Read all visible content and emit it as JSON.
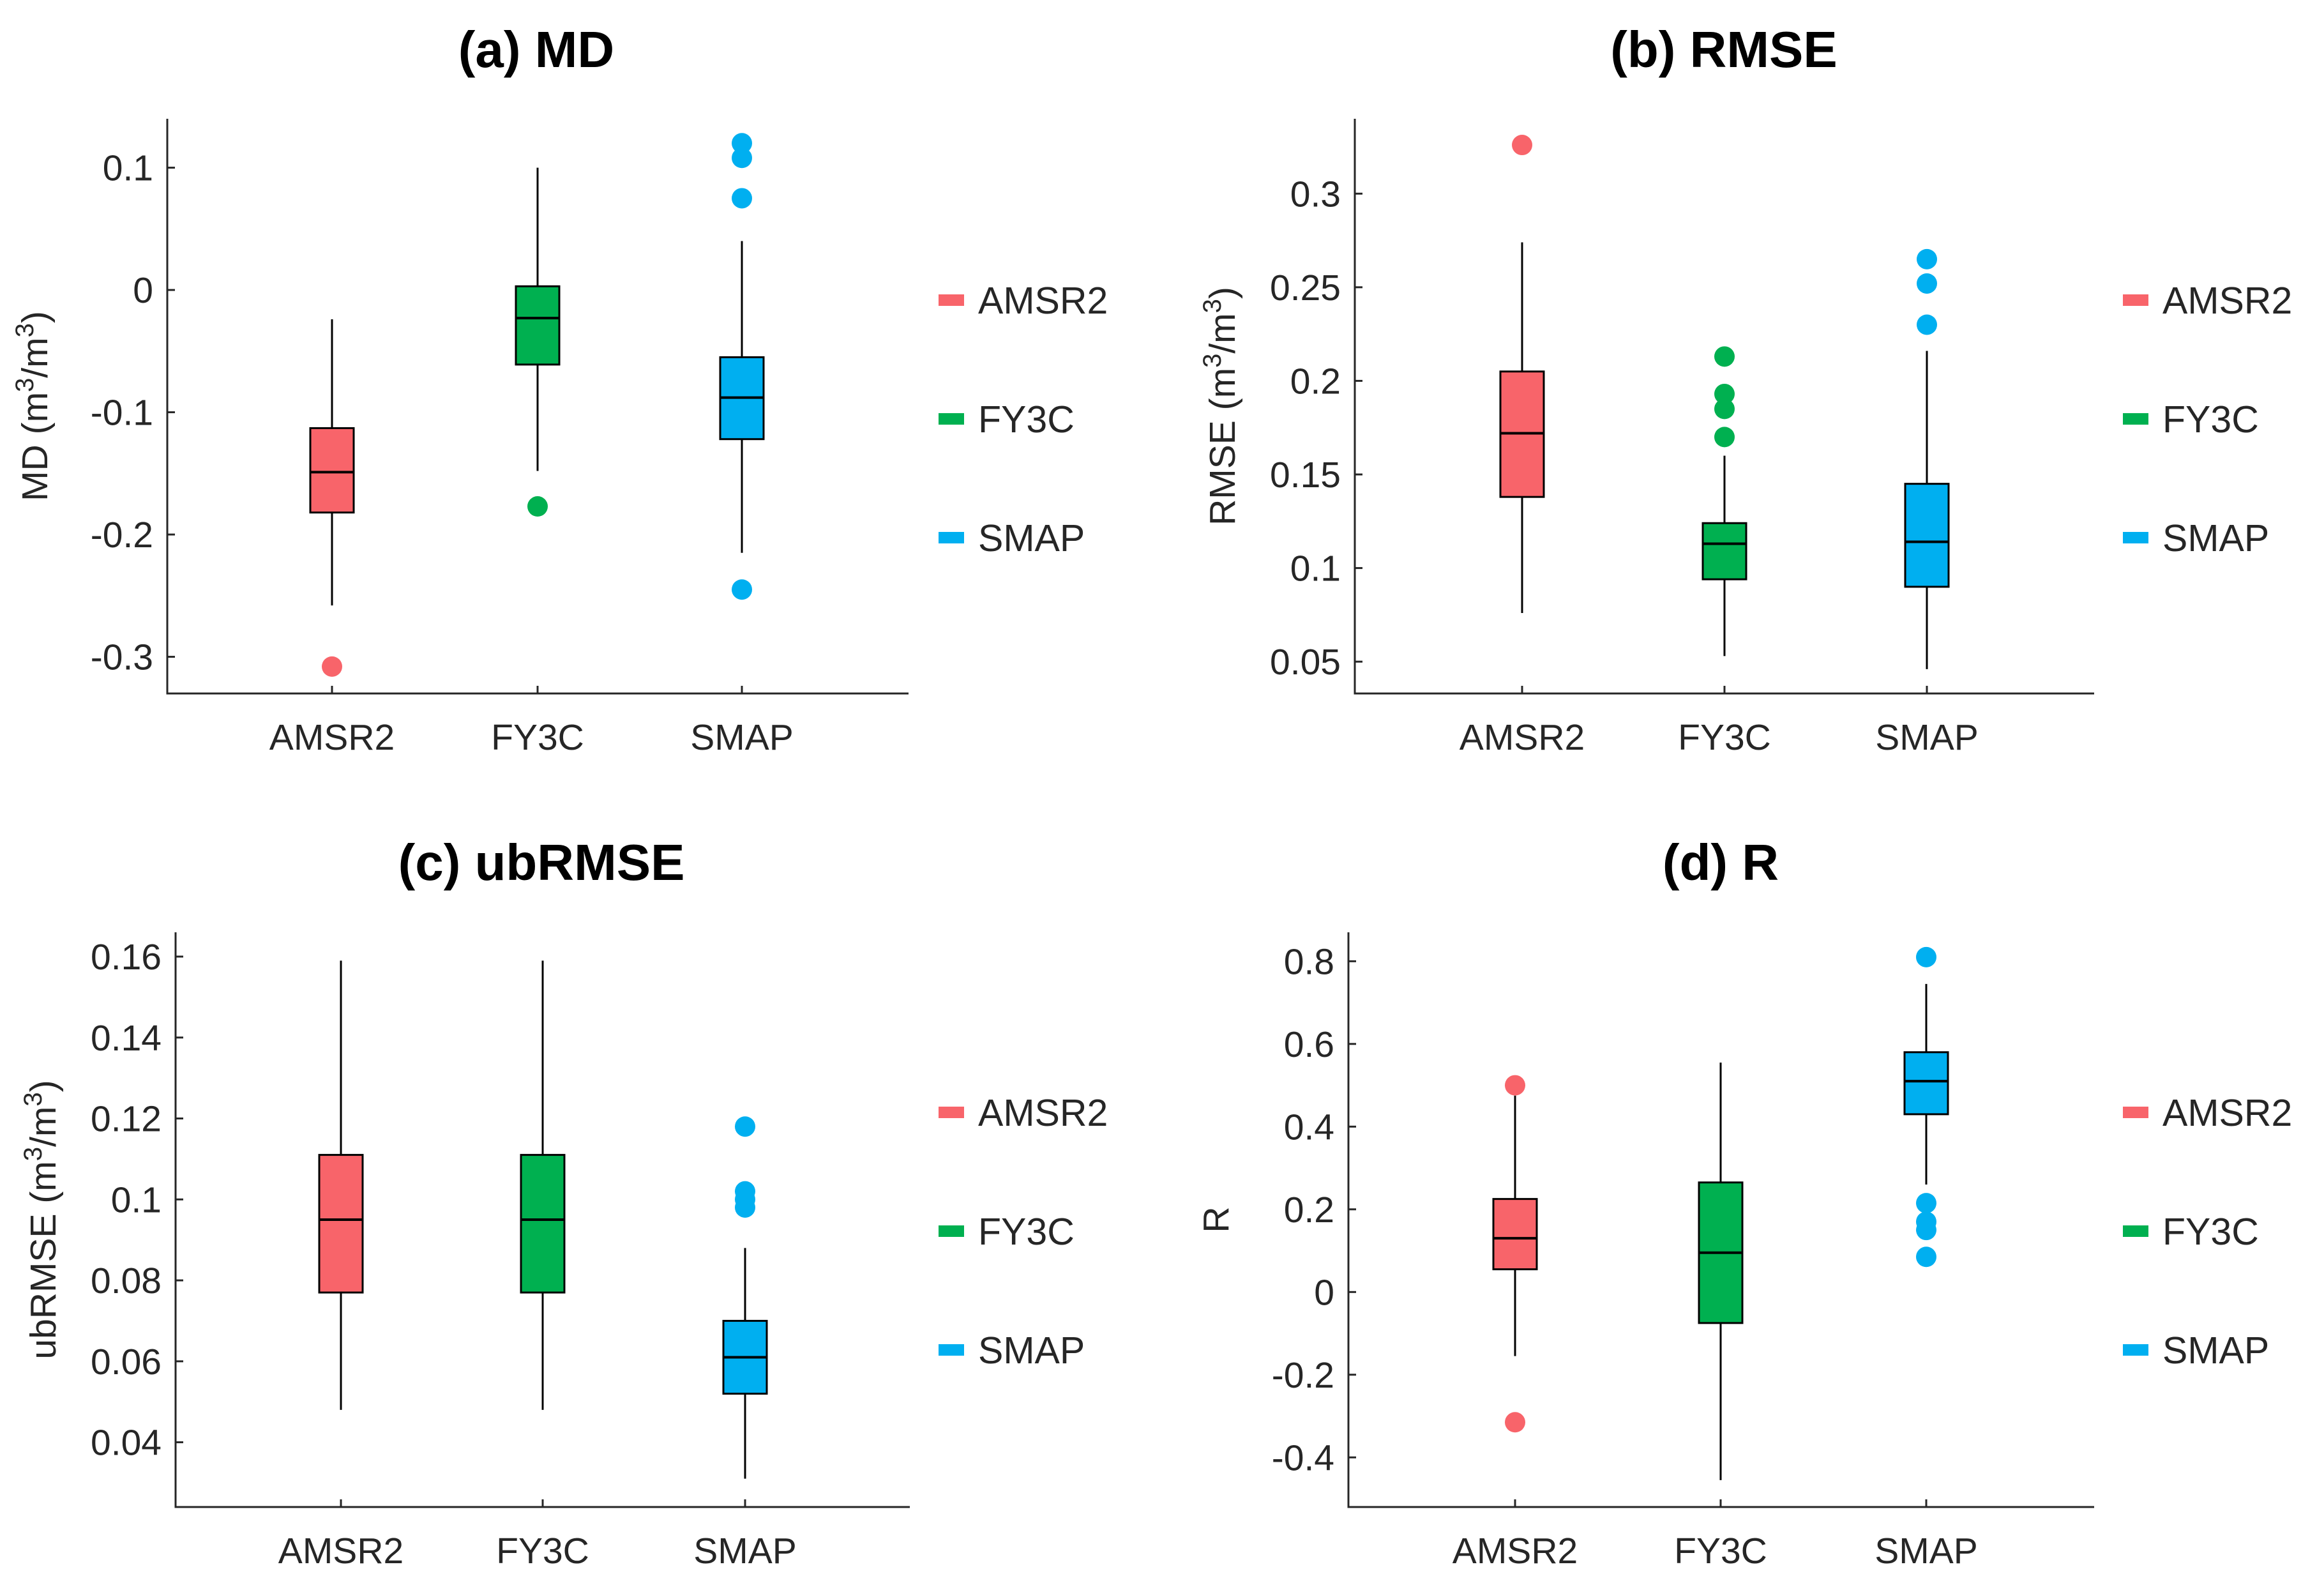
{
  "chart_data": [
    {
      "type": "box",
      "title": "(a) MD",
      "ylabel": "MD (m3/m3)",
      "ylabel_parts": [
        "MD (m",
        "3",
        "/m",
        "3",
        ")"
      ],
      "ylim": [
        -0.33,
        0.14
      ],
      "yticks": [
        -0.3,
        -0.2,
        -0.1,
        0,
        0.1
      ],
      "ytick_labels": [
        "-0.3",
        "-0.2",
        "-0.1",
        "0",
        "0.1"
      ],
      "categories": [
        "AMSR2",
        "FY3C",
        "SMAP"
      ],
      "boxes": [
        {
          "name": "AMSR2",
          "whisker_low": -0.258,
          "q1": -0.182,
          "median": -0.149,
          "q3": -0.113,
          "whisker_high": -0.024,
          "outliers": [
            -0.308
          ]
        },
        {
          "name": "FY3C",
          "whisker_low": -0.148,
          "q1": -0.061,
          "median": -0.023,
          "q3": 0.003,
          "whisker_high": 0.1,
          "outliers": [
            -0.177
          ]
        },
        {
          "name": "SMAP",
          "whisker_low": -0.215,
          "q1": -0.122,
          "median": -0.088,
          "q3": -0.055,
          "whisker_high": 0.04,
          "outliers": [
            -0.245,
            0.075,
            0.108,
            0.12
          ]
        }
      ],
      "legend": [
        "AMSR2",
        "FY3C",
        "SMAP"
      ]
    },
    {
      "type": "box",
      "title": "(b) RMSE",
      "ylabel": "RMSE (m3/m3)",
      "ylabel_parts": [
        "RMSE (m",
        "3",
        "/m",
        "3",
        ")"
      ],
      "ylim": [
        0.033,
        0.34
      ],
      "yticks": [
        0.05,
        0.1,
        0.15,
        0.2,
        0.25,
        0.3
      ],
      "ytick_labels": [
        "0.05",
        "0.1",
        "0.15",
        "0.2",
        "0.25",
        "0.3"
      ],
      "categories": [
        "AMSR2",
        "FY3C",
        "SMAP"
      ],
      "boxes": [
        {
          "name": "AMSR2",
          "whisker_low": 0.076,
          "q1": 0.138,
          "median": 0.172,
          "q3": 0.205,
          "whisker_high": 0.274,
          "outliers": [
            0.326
          ]
        },
        {
          "name": "FY3C",
          "whisker_low": 0.053,
          "q1": 0.094,
          "median": 0.113,
          "q3": 0.124,
          "whisker_high": 0.16,
          "outliers": [
            0.17,
            0.185,
            0.193,
            0.213
          ]
        },
        {
          "name": "SMAP",
          "whisker_low": 0.046,
          "q1": 0.09,
          "median": 0.114,
          "q3": 0.145,
          "whisker_high": 0.216,
          "outliers": [
            0.23,
            0.252,
            0.265
          ]
        }
      ],
      "legend": [
        "AMSR2",
        "FY3C",
        "SMAP"
      ]
    },
    {
      "type": "box",
      "title": "(c) ubRMSE",
      "ylabel": "ubRMSE (m3/m3)",
      "ylabel_parts": [
        "ubRMSE (m",
        "3",
        "/m",
        "3",
        ")"
      ],
      "ylim": [
        0.024,
        0.166
      ],
      "yticks": [
        0.04,
        0.06,
        0.08,
        0.1,
        0.12,
        0.14,
        0.16
      ],
      "ytick_labels": [
        "0.04",
        "0.06",
        "0.08",
        "0.1",
        "0.12",
        "0.14",
        "0.16"
      ],
      "categories": [
        "AMSR2",
        "FY3C",
        "SMAP"
      ],
      "boxes": [
        {
          "name": "AMSR2",
          "whisker_low": 0.048,
          "q1": 0.077,
          "median": 0.095,
          "q3": 0.111,
          "whisker_high": 0.159,
          "outliers": []
        },
        {
          "name": "FY3C",
          "whisker_low": 0.048,
          "q1": 0.077,
          "median": 0.095,
          "q3": 0.111,
          "whisker_high": 0.159,
          "outliers": []
        },
        {
          "name": "SMAP",
          "whisker_low": 0.031,
          "q1": 0.052,
          "median": 0.061,
          "q3": 0.07,
          "whisker_high": 0.088,
          "outliers": [
            0.098,
            0.1,
            0.102,
            0.118
          ]
        }
      ],
      "legend": [
        "AMSR2",
        "FY3C",
        "SMAP"
      ]
    },
    {
      "type": "box",
      "title": "(d) R",
      "ylabel": "R",
      "ylabel_parts": [
        "R"
      ],
      "ylim": [
        -0.52,
        0.87
      ],
      "yticks": [
        -0.4,
        -0.2,
        0,
        0.2,
        0.4,
        0.6,
        0.8
      ],
      "ytick_labels": [
        "-0.4",
        "-0.2",
        "0",
        "0.2",
        "0.4",
        "0.6",
        "0.8"
      ],
      "categories": [
        "AMSR2",
        "FY3C",
        "SMAP"
      ],
      "boxes": [
        {
          "name": "AMSR2",
          "whisker_low": -0.155,
          "q1": 0.055,
          "median": 0.13,
          "q3": 0.225,
          "whisker_high": 0.475,
          "outliers": [
            -0.315,
            0.5
          ]
        },
        {
          "name": "FY3C",
          "whisker_low": -0.455,
          "q1": -0.075,
          "median": 0.095,
          "q3": 0.265,
          "whisker_high": 0.555,
          "outliers": []
        },
        {
          "name": "SMAP",
          "whisker_low": 0.26,
          "q1": 0.43,
          "median": 0.51,
          "q3": 0.58,
          "whisker_high": 0.745,
          "outliers": [
            0.085,
            0.15,
            0.17,
            0.215,
            0.81
          ]
        }
      ],
      "legend": [
        "AMSR2",
        "FY3C",
        "SMAP"
      ]
    }
  ],
  "colors": {
    "AMSR2": "#f8646a",
    "FY3C": "#00b050",
    "SMAP": "#00aff0",
    "axis": "#262626"
  }
}
